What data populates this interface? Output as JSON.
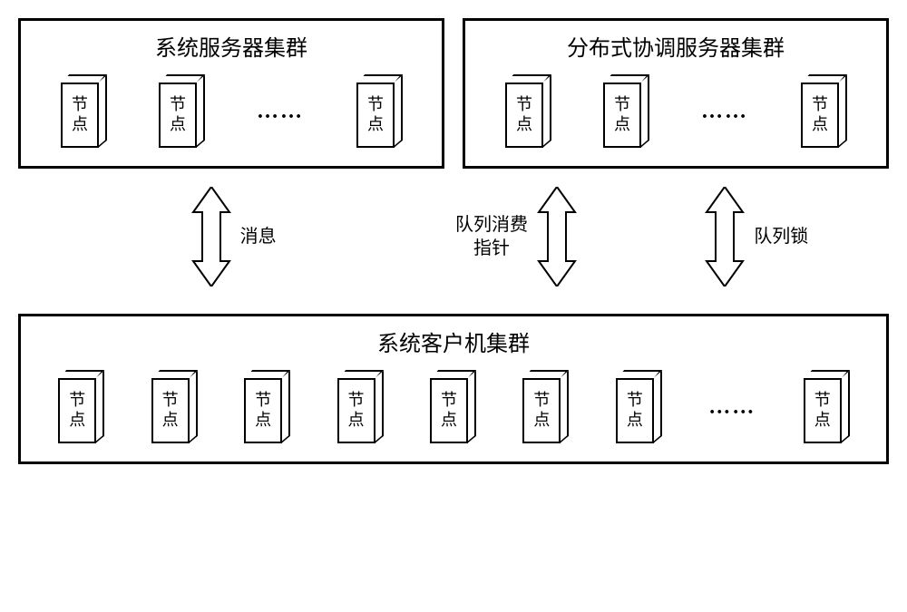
{
  "clusters": {
    "top_left": {
      "title": "系统服务器集群",
      "node_label": "节\n点"
    },
    "top_right": {
      "title": "分布式协调服务器集群",
      "node_label": "节\n点"
    },
    "bottom": {
      "title": "系统客户机集群",
      "node_label": "节\n点"
    }
  },
  "arrows": {
    "left": {
      "label": "消息"
    },
    "middle": {
      "label": "队列消费\n指针"
    },
    "right": {
      "label": "队列锁"
    }
  },
  "ellipsis": "……",
  "colors": {
    "stroke": "#000000",
    "fill": "#ffffff"
  }
}
